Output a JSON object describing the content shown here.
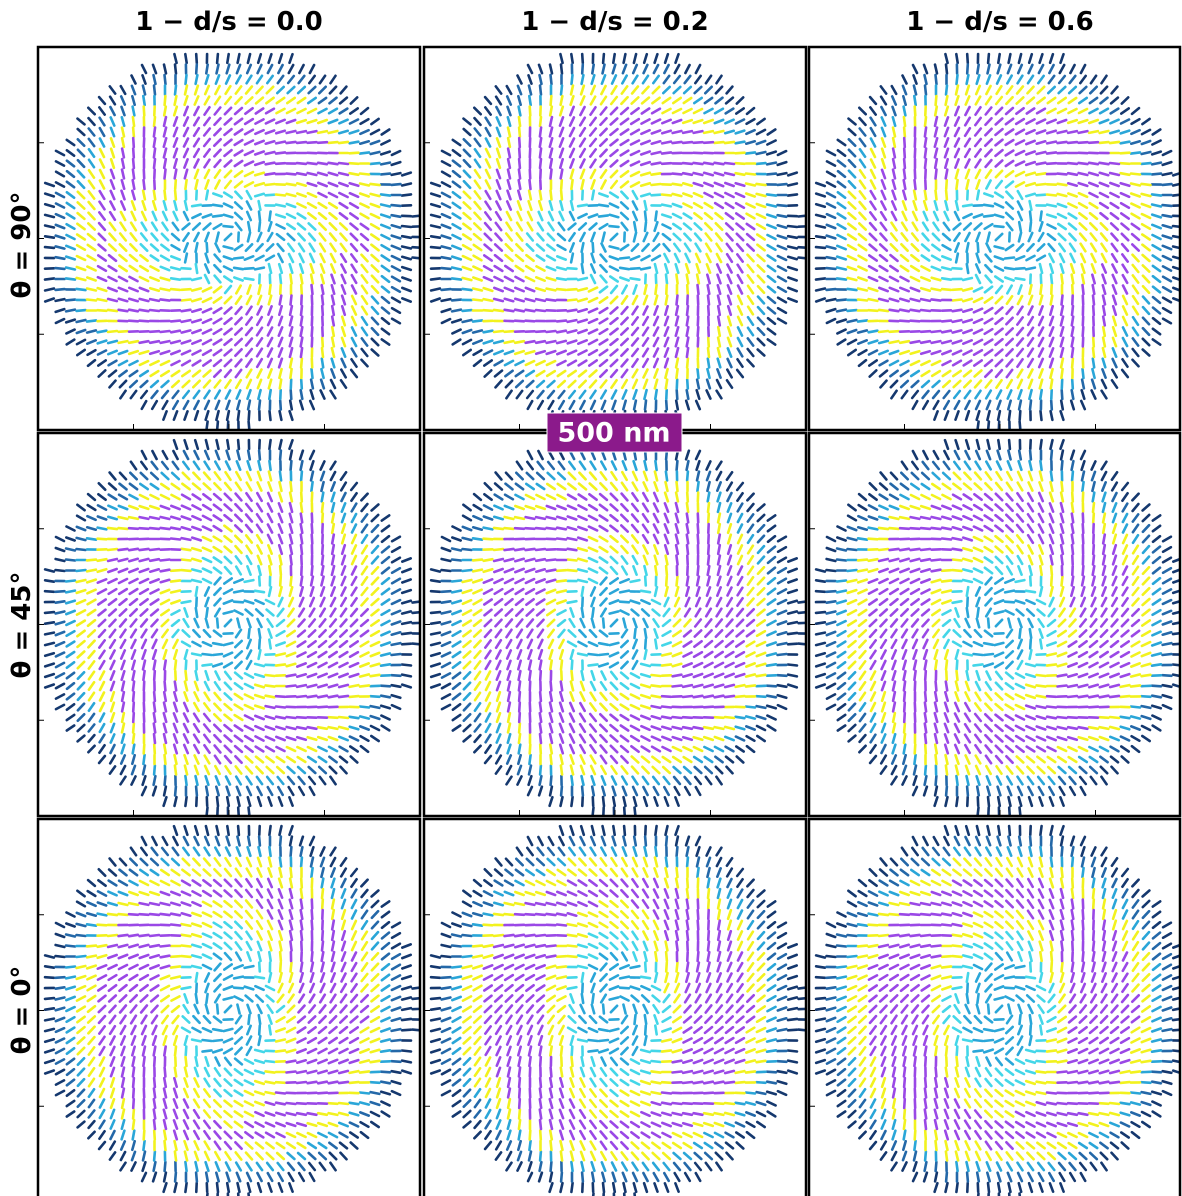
{
  "columns": [
    "1 − d/s = 0.0",
    "1 − d/s = 0.2",
    "1 − d/s = 0.6"
  ],
  "rows": [
    "θ = 90°",
    "θ = 45°",
    "θ = 0°"
  ],
  "scale_bar": "500 nm"
}
